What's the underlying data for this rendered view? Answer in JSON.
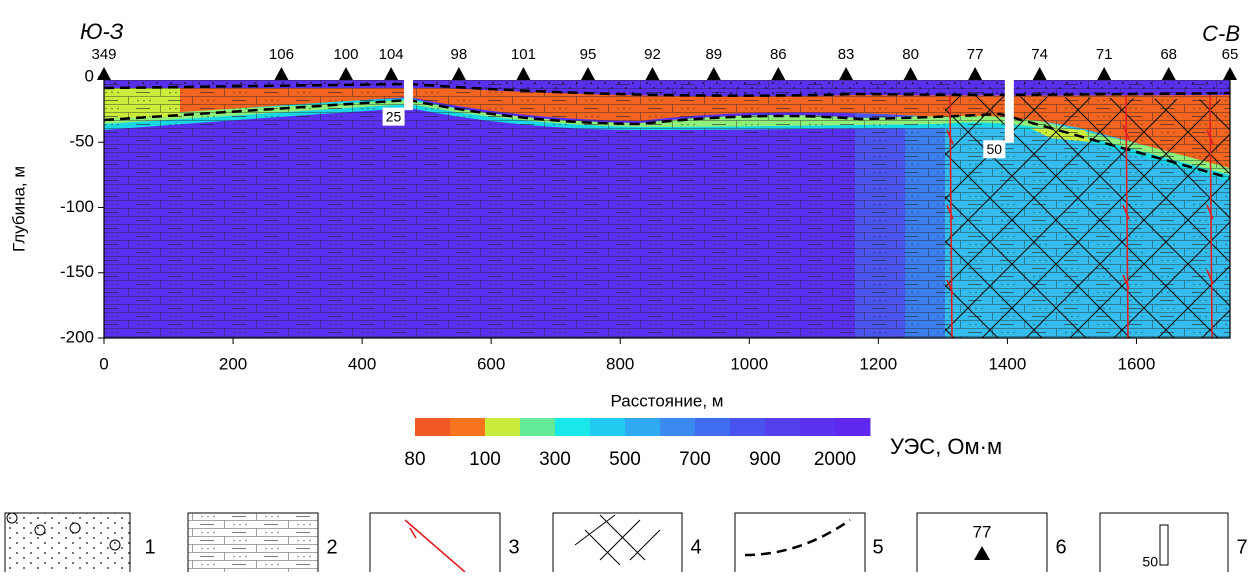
{
  "chart_data": {
    "type": "section",
    "annotations": {
      "left": "Ю-З",
      "right": "С-В"
    },
    "ylabel": "Глубина, м",
    "xlabel": "Расстояние, м",
    "xlim": [
      0,
      1745
    ],
    "ylim": [
      -200,
      0
    ],
    "xticks": [
      0,
      200,
      400,
      600,
      800,
      1000,
      1200,
      1400,
      1600
    ],
    "yticks": [
      0,
      -50,
      -100,
      -150,
      -200
    ],
    "stations": {
      "x": [
        0,
        275,
        375,
        445,
        550,
        650,
        750,
        850,
        945,
        1045,
        1150,
        1250,
        1350,
        1450,
        1550,
        1650,
        1745
      ],
      "labels": [
        349,
        106,
        100,
        104,
        98,
        101,
        95,
        92,
        89,
        86,
        83,
        80,
        77,
        74,
        71,
        68,
        65
      ]
    },
    "boreholes": [
      {
        "x": 472,
        "depth": 25
      },
      {
        "x": 1403,
        "depth": 50
      }
    ],
    "colorbar": {
      "title": "УЭС, Ом·м",
      "colors": [
        "#f15a24",
        "#f7731d",
        "#c9ec3c",
        "#63eb98",
        "#18e8e8",
        "#22caf2",
        "#2fa9f2",
        "#3a8af0",
        "#3f6cf0",
        "#4a52f0",
        "#5540f0",
        "#5a32f0",
        "#6028ee"
      ],
      "labels": [
        80,
        100,
        300,
        500,
        700,
        900,
        2000
      ]
    },
    "legend": {
      "labels": [
        1,
        2,
        3,
        4,
        5,
        6,
        7
      ],
      "station_sample": 77,
      "borehole_sample": 50
    }
  }
}
